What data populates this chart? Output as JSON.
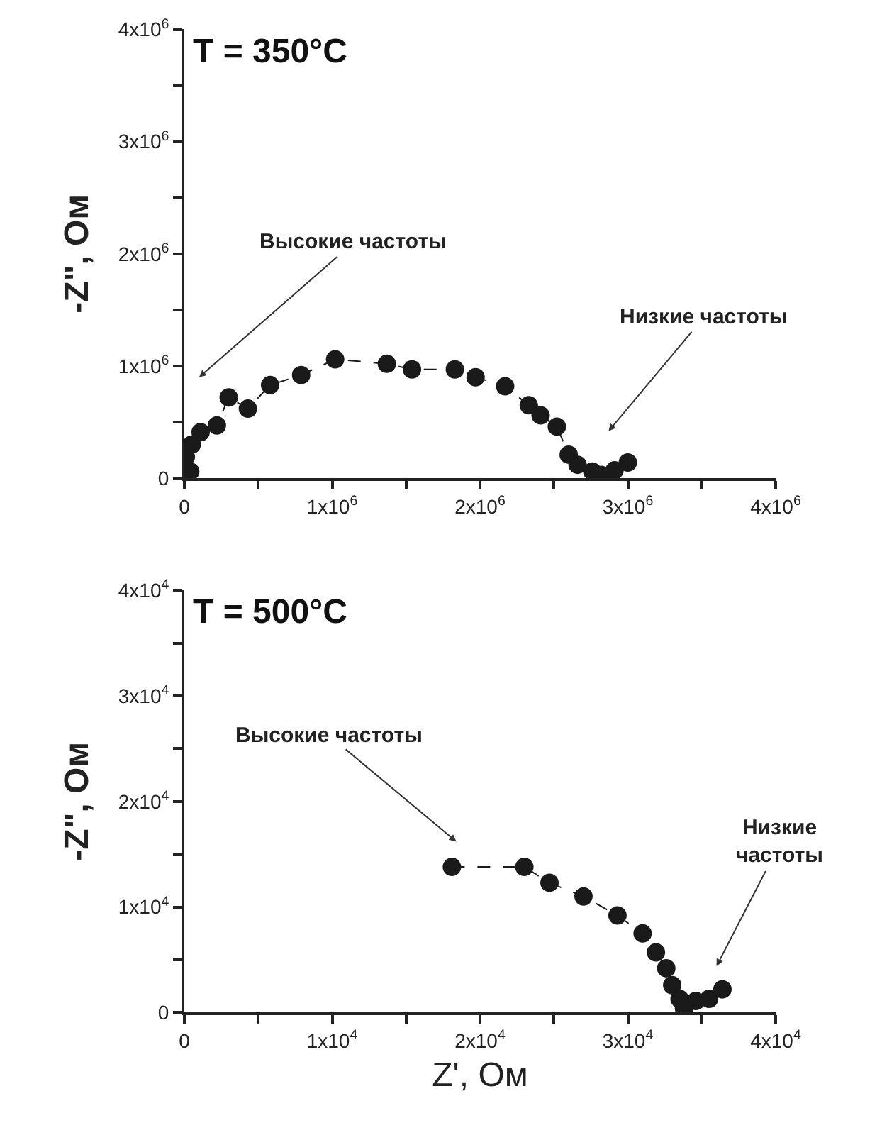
{
  "chart_data": [
    {
      "type": "line",
      "title": "T = 350°C",
      "ylabel": "-Z\", Ом",
      "marker": "circle",
      "line_style": "dashed",
      "xlim": [
        0,
        4000000
      ],
      "ylim": [
        0,
        4000000
      ],
      "xticks": [
        0,
        {
          "value": 500000,
          "label": null
        },
        {
          "value": 1000000,
          "label": "1x10$^{6}$"
        },
        {
          "value": 1500000,
          "label": null
        },
        {
          "value": 2000000,
          "label": "2x10$^{6}$"
        },
        {
          "value": 2500000,
          "label": null
        },
        {
          "value": 3000000,
          "label": "3x10$^{6}$"
        },
        {
          "value": 3500000,
          "label": null
        },
        {
          "value": 4000000,
          "label": "4x10$^{6}$"
        }
      ],
      "yticks": [
        0,
        {
          "value": 500000,
          "label": null
        },
        {
          "value": 1000000,
          "label": "1x10$^{6}$"
        },
        {
          "value": 1500000,
          "label": null
        },
        {
          "value": 2000000,
          "label": "2x10$^{6}$"
        },
        {
          "value": 2500000,
          "label": null
        },
        {
          "value": 3000000,
          "label": "3x10$^{6}$"
        },
        {
          "value": 3500000,
          "label": null
        },
        {
          "value": 4000000,
          "label": "4x10$^{6}$"
        }
      ],
      "series": [
        {
          "color": "#1a1a1a",
          "x": [
            40000,
            10000,
            50000,
            110000,
            220000,
            300000,
            430000,
            580000,
            790000,
            1020000,
            1370000,
            1540000,
            1830000,
            1970000,
            2170000,
            2330000,
            2410000,
            2520000,
            2600000,
            2660000,
            2760000,
            2820000,
            2910000,
            3000000
          ],
          "values": [
            60000,
            190000,
            300000,
            410000,
            470000,
            720000,
            620000,
            830000,
            920000,
            1060000,
            1020000,
            970000,
            970000,
            900000,
            820000,
            650000,
            560000,
            460000,
            210000,
            120000,
            60000,
            30000,
            70000,
            140000
          ]
        }
      ],
      "annotations": [
        "Высокие частоты",
        "Низкие частоты"
      ]
    },
    {
      "type": "line",
      "title": "T = 500°C",
      "xlabel": "Z', Ом",
      "ylabel": "-Z\", Ом",
      "marker": "circle",
      "line_style": "dashed",
      "xlim": [
        0,
        40000
      ],
      "ylim": [
        0,
        40000
      ],
      "xticks": [
        0,
        {
          "value": 5000,
          "label": null
        },
        {
          "value": 10000,
          "label": "1x10$^{4}$"
        },
        {
          "value": 15000,
          "label": null
        },
        {
          "value": 20000,
          "label": "2x10$^{4}$"
        },
        {
          "value": 25000,
          "label": null
        },
        {
          "value": 30000,
          "label": "3x10$^{4}$"
        },
        {
          "value": 35000,
          "label": null
        },
        {
          "value": 40000,
          "label": "4x10$^{4}$"
        }
      ],
      "yticks": [
        0,
        {
          "value": 5000,
          "label": null
        },
        {
          "value": 10000,
          "label": "1x10$^{4}$"
        },
        {
          "value": 15000,
          "label": null
        },
        {
          "value": 20000,
          "label": "2x10$^{4}$"
        },
        {
          "value": 25000,
          "label": null
        },
        {
          "value": 30000,
          "label": "3x10$^{4}$"
        },
        {
          "value": 35000,
          "label": null
        },
        {
          "value": 40000,
          "label": "4x10$^{4}$"
        }
      ],
      "series": [
        {
          "color": "#1a1a1a",
          "x": [
            18100,
            23000,
            24700,
            27000,
            29300,
            31000,
            31900,
            32600,
            33000,
            33500,
            33800,
            34600,
            35500,
            36400
          ],
          "values": [
            13800,
            13800,
            12300,
            11000,
            9200,
            7500,
            5700,
            4200,
            2600,
            1300,
            400,
            1100,
            1300,
            2200
          ]
        }
      ],
      "annotations": [
        "Высокие частоты",
        "Низкие\nчастоты"
      ]
    }
  ]
}
